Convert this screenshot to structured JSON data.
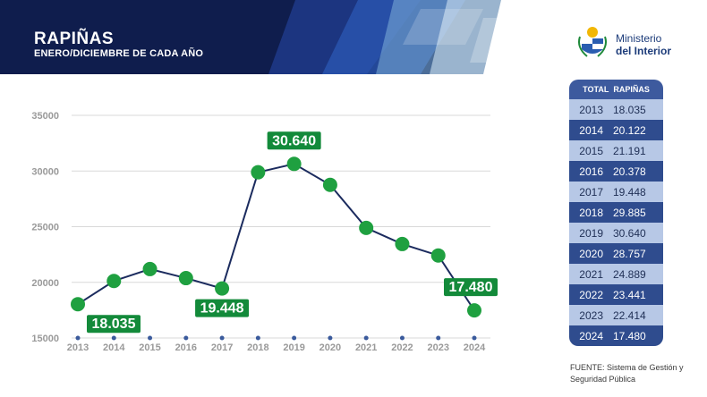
{
  "header": {
    "title": "RAPIÑAS",
    "subtitle": "ENERO/DICIEMBRE DE CADA AÑO"
  },
  "brand": {
    "line1": "Ministerio",
    "line2": "del Interior"
  },
  "colors": {
    "banner": "#0f1d4d",
    "line": "#1b2b5e",
    "marker": "#1fa040",
    "callout": "#138a3a",
    "table_header": "#3d5a9e",
    "table_light": "#b7c8e6",
    "table_dark": "#2f4c8e"
  },
  "chart_data": {
    "type": "line",
    "title": "",
    "xlabel": "",
    "ylabel": "",
    "x": [
      "2013",
      "2014",
      "2015",
      "2016",
      "2017",
      "2018",
      "2019",
      "2020",
      "2021",
      "2022",
      "2023",
      "2024"
    ],
    "series": [
      {
        "values": [
          18035,
          20122,
          21191,
          20378,
          19448,
          29885,
          30640,
          28757,
          24889,
          23441,
          22414,
          17480
        ]
      }
    ],
    "yticks": [
      15000,
      20000,
      25000,
      30000,
      35000
    ],
    "ytick_labels": [
      "15000",
      "20000",
      "25000",
      "30000",
      "35000"
    ],
    "ylim": [
      15000,
      35000
    ],
    "grid": true,
    "callouts": [
      {
        "index": 0,
        "label": "18.035",
        "placement": "below"
      },
      {
        "index": 4,
        "label": "19.448",
        "placement": "below"
      },
      {
        "index": 6,
        "label": "30.640",
        "placement": "above"
      },
      {
        "index": 11,
        "label": "17.480",
        "placement": "above"
      }
    ]
  },
  "table": {
    "header_col1": "TOTAL",
    "header_col2": "RAPIÑAS",
    "rows": [
      {
        "year": "2013",
        "value": "18.035"
      },
      {
        "year": "2014",
        "value": "20.122"
      },
      {
        "year": "2015",
        "value": "21.191"
      },
      {
        "year": "2016",
        "value": "20.378"
      },
      {
        "year": "2017",
        "value": "19.448"
      },
      {
        "year": "2018",
        "value": "29.885"
      },
      {
        "year": "2019",
        "value": "30.640"
      },
      {
        "year": "2020",
        "value": "28.757"
      },
      {
        "year": "2021",
        "value": "24.889"
      },
      {
        "year": "2022",
        "value": "23.441"
      },
      {
        "year": "2023",
        "value": "22.414"
      },
      {
        "year": "2024",
        "value": "17.480"
      }
    ]
  },
  "source": {
    "line1": "FUENTE: Sistema de Gestión y",
    "line2": "Seguridad Pública"
  }
}
